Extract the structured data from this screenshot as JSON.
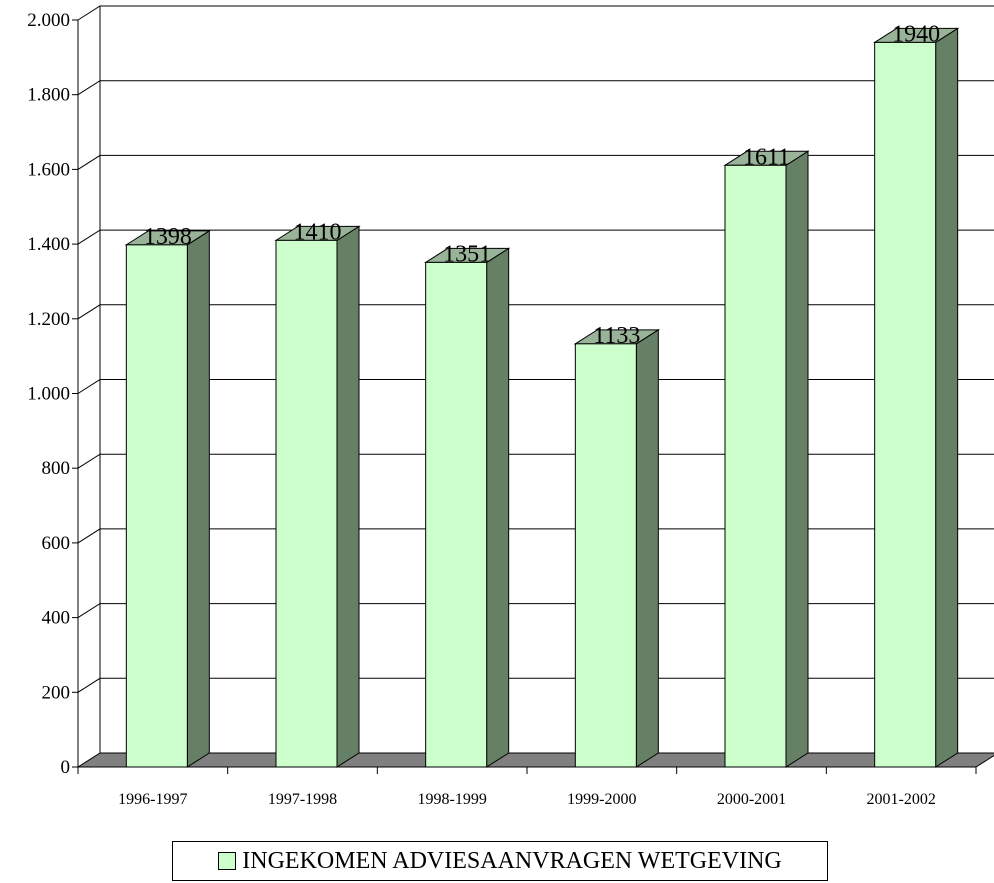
{
  "chart_data": {
    "type": "bar",
    "title": "",
    "xlabel": "",
    "ylabel": "",
    "categories": [
      "1996-1997",
      "1997-1998",
      "1998-1999",
      "1999-2000",
      "2000-2001",
      "2001-2002"
    ],
    "series": [
      {
        "name": "INGEKOMEN ADVIESAANVRAGEN WETGEVING",
        "values": [
          1398,
          1410,
          1351,
          1133,
          1611,
          1940
        ]
      }
    ],
    "value_labels": [
      "1398",
      "1410",
      "1351",
      "1133",
      "1611",
      "1940"
    ],
    "ylim": [
      0,
      2000
    ],
    "yticks": [
      0,
      200,
      400,
      600,
      800,
      1000,
      1200,
      1400,
      1600,
      1800,
      2000
    ],
    "ytick_labels": [
      "0",
      "200",
      "400",
      "600",
      "800",
      "1.000",
      "1.200",
      "1.400",
      "1.600",
      "1.800",
      "2.000"
    ],
    "grid": true,
    "legend_position": "bottom",
    "style": "3d-bar",
    "colors": {
      "bar_front": "#ccffcc",
      "bar_side": "#668066",
      "bar_top": "#99b399",
      "floor": "#808080"
    }
  }
}
